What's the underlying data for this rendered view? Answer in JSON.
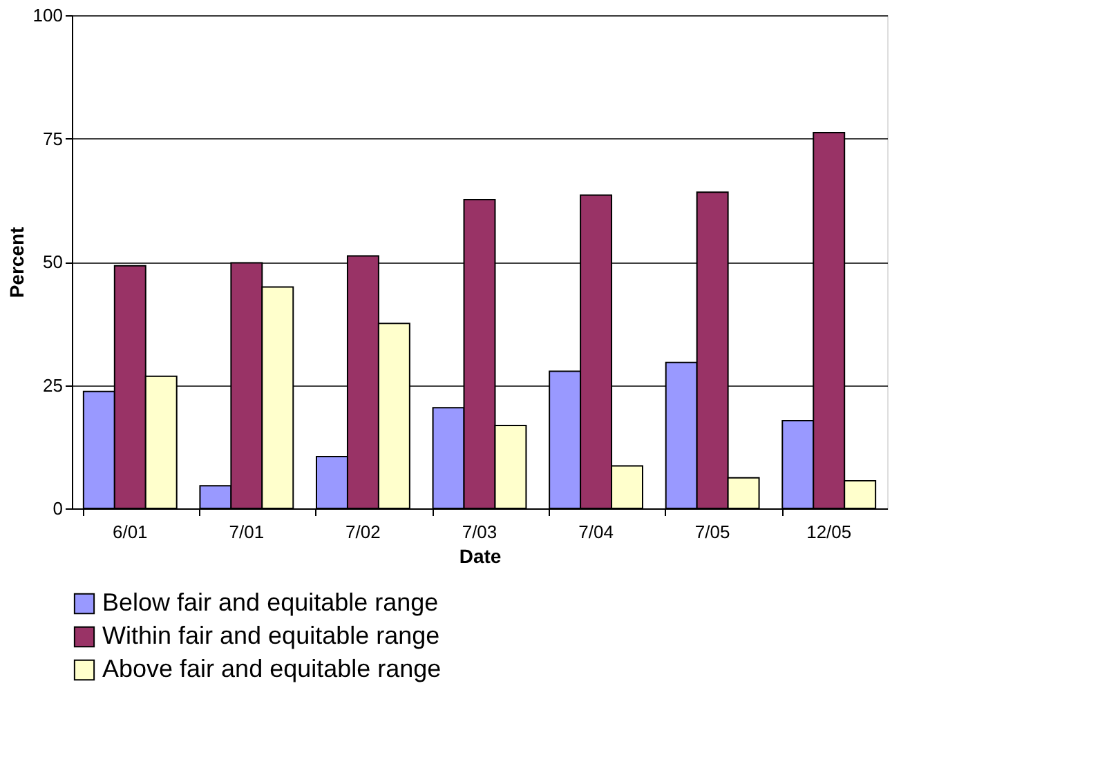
{
  "chart_data": {
    "type": "bar",
    "xlabel": "Date",
    "ylabel": "Percent",
    "categories": [
      "6/01",
      "7/01",
      "7/02",
      "7/03",
      "7/04",
      "7/05",
      "12/05"
    ],
    "series": [
      {
        "name": "Below fair and equitable range",
        "color": "#9999ff",
        "values": [
          23.7,
          4.6,
          10.5,
          20.4,
          27.8,
          29.6,
          17.8
        ]
      },
      {
        "name": "Within fair and equitable range",
        "color": "#993366",
        "values": [
          49.2,
          49.8,
          51.2,
          62.6,
          63.5,
          64.1,
          76.2
        ]
      },
      {
        "name": "Above fair and equitable range",
        "color": "#ffffcc",
        "values": [
          26.8,
          44.9,
          37.5,
          16.8,
          8.6,
          6.2,
          5.6
        ]
      }
    ],
    "ylim": [
      0,
      100
    ],
    "yticks": [
      0,
      25,
      50,
      75,
      100
    ],
    "grid": "y",
    "legend": "bottom"
  }
}
